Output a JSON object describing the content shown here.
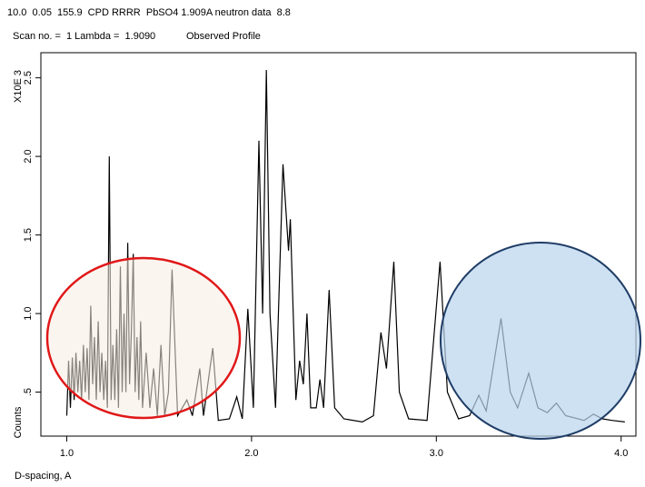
{
  "chart_data": {
    "type": "line",
    "header": "10.0  0.05  155.9  CPD RRRR  PbSO4 1.909A neutron data  8.8",
    "subheader": "Scan no. =  1 Lambda =  1.9090",
    "title": "Observed Profile",
    "y_multiplier_label": "X10E 3",
    "ylabel": "Counts",
    "xlabel": "D-spacing, A",
    "color": "#000000",
    "xlim": [
      0.86,
      4.08
    ],
    "ylim": [
      0.22,
      2.66
    ],
    "xticks": [
      {
        "value": 1,
        "label": "1.0"
      },
      {
        "value": 2,
        "label": "2.0"
      },
      {
        "value": 3,
        "label": "3.0"
      },
      {
        "value": 4,
        "label": "4.0"
      }
    ],
    "yticks": [
      {
        "value": 0.5,
        "label": ".5"
      },
      {
        "value": 1,
        "label": "1.0"
      },
      {
        "value": 1.5,
        "label": "1.5"
      },
      {
        "value": 2,
        "label": "2.0"
      },
      {
        "value": 2.5,
        "label": "2.5"
      }
    ],
    "x": [
      1.0,
      1.01,
      1.02,
      1.03,
      1.04,
      1.05,
      1.06,
      1.07,
      1.08,
      1.09,
      1.1,
      1.11,
      1.12,
      1.13,
      1.14,
      1.15,
      1.16,
      1.17,
      1.18,
      1.19,
      1.2,
      1.21,
      1.22,
      1.23,
      1.24,
      1.25,
      1.26,
      1.27,
      1.28,
      1.29,
      1.3,
      1.31,
      1.32,
      1.33,
      1.34,
      1.35,
      1.36,
      1.37,
      1.38,
      1.39,
      1.4,
      1.41,
      1.43,
      1.45,
      1.47,
      1.49,
      1.51,
      1.53,
      1.55,
      1.57,
      1.6,
      1.65,
      1.68,
      1.72,
      1.74,
      1.79,
      1.82,
      1.88,
      1.92,
      1.95,
      1.98,
      2.01,
      2.04,
      2.06,
      2.08,
      2.1,
      2.13,
      2.17,
      2.2,
      2.21,
      2.24,
      2.26,
      2.28,
      2.3,
      2.32,
      2.35,
      2.37,
      2.39,
      2.42,
      2.45,
      2.5,
      2.6,
      2.66,
      2.7,
      2.73,
      2.77,
      2.8,
      2.85,
      2.95,
      3.02,
      3.06,
      3.12,
      3.18,
      3.23,
      3.27,
      3.35,
      3.4,
      3.44,
      3.5,
      3.55,
      3.6,
      3.65,
      3.7,
      3.8,
      3.85,
      3.9,
      3.95,
      4.02
    ],
    "values": [
      0.35,
      0.7,
      0.4,
      0.72,
      0.45,
      0.75,
      0.5,
      0.7,
      0.45,
      0.8,
      0.5,
      0.78,
      0.45,
      1.05,
      0.55,
      0.85,
      0.45,
      0.95,
      0.5,
      0.75,
      0.45,
      0.7,
      0.4,
      2.0,
      0.45,
      0.8,
      0.45,
      0.9,
      0.4,
      1.3,
      0.5,
      1.0,
      0.5,
      1.45,
      0.55,
      0.9,
      1.38,
      0.5,
      0.85,
      0.45,
      0.95,
      0.4,
      0.75,
      0.4,
      0.65,
      0.35,
      0.8,
      0.35,
      0.5,
      1.28,
      0.35,
      0.45,
      0.35,
      0.65,
      0.35,
      0.78,
      0.32,
      0.33,
      0.47,
      0.33,
      1.03,
      0.4,
      2.1,
      1.0,
      2.55,
      1.0,
      0.4,
      1.95,
      1.4,
      1.6,
      0.45,
      0.7,
      0.55,
      1.0,
      0.4,
      0.4,
      0.58,
      0.4,
      1.15,
      0.4,
      0.33,
      0.31,
      0.35,
      0.88,
      0.65,
      1.33,
      0.5,
      0.33,
      0.32,
      1.33,
      0.5,
      0.33,
      0.35,
      0.48,
      0.38,
      0.97,
      0.5,
      0.4,
      0.62,
      0.4,
      0.37,
      0.43,
      0.35,
      0.32,
      0.36,
      0.33,
      0.32,
      0.31
    ]
  }
}
